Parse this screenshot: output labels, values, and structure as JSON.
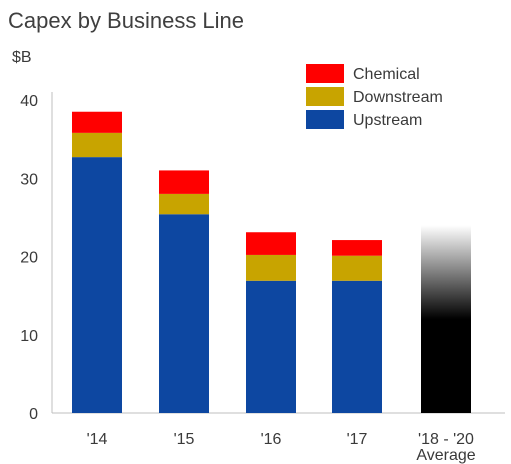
{
  "chart_data": {
    "type": "bar",
    "stacked": true,
    "title": "Capex by Business Line",
    "ylabel": "$B",
    "xlabel": "",
    "ylim": [
      0,
      40
    ],
    "yticks": [
      0,
      10,
      20,
      30,
      40
    ],
    "grid": false,
    "legend_position": "top-right",
    "categories": [
      "'14",
      "'15",
      "'16",
      "'17",
      "'18 - '20\nAverage"
    ],
    "series": [
      {
        "name": "Upstream",
        "color": "#0d47a1",
        "values": [
          32.7,
          25.4,
          16.9,
          16.9,
          null
        ]
      },
      {
        "name": "Downstream",
        "color": "#c8a400",
        "values": [
          3.1,
          2.6,
          3.3,
          3.2,
          null
        ]
      },
      {
        "name": "Chemical",
        "color": "#ff0000",
        "values": [
          2.7,
          3.0,
          2.9,
          2.0,
          null
        ]
      }
    ],
    "legend_order": [
      "Chemical",
      "Downstream",
      "Upstream"
    ],
    "projection": {
      "category": "'18 - '20\nAverage",
      "total": 24,
      "style": "black-to-white gradient"
    }
  }
}
